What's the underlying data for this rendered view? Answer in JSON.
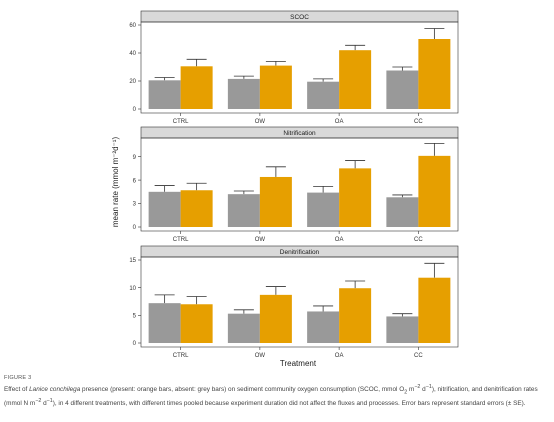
{
  "figure_label": "FIGURE 3",
  "caption_html": "Effect of <i>Lanice conchilega</i> presence (present: orange bars, absent: grey bars) on sediment community oxygen consumption (SCOC, mmol O<sub>2</sub> m<sup>−2</sup> d<sup>−1</sup>), nitrification, and denitrification rates (mmol N m<sup>−2</sup> d<sup>−1</sup>), in 4 different treatments, with different times pooled because experiment duration did not affect the fluxes and processes. Error bars represent standard errors (± SE).",
  "colors": {
    "present": "#E69F00",
    "absent": "#999999",
    "strip": "#D9D9D9"
  },
  "chart_data": {
    "type": "bar",
    "xlabel": "Treatment",
    "ylabel": "mean rate (mmol m⁻²d⁻¹)",
    "categories": [
      "CTRL",
      "OW",
      "OA",
      "CC"
    ],
    "grid": false,
    "panels": [
      {
        "title": "SCOC",
        "ylim": [
          0,
          60
        ],
        "yticks": [
          0,
          20,
          40,
          60
        ],
        "series": [
          {
            "values": [
              20.5,
              21.5,
              19.5,
              27.5
            ],
            "errors": [
              2.0,
              2.0,
              2.0,
              2.5
            ]
          },
          {
            "values": [
              30.5,
              31.0,
              42.0,
              50.0
            ],
            "errors": [
              5.0,
              3.0,
              3.5,
              7.5
            ]
          }
        ]
      },
      {
        "title": "Nitrification",
        "ylim": [
          0,
          11
        ],
        "yticks": [
          0,
          3,
          6,
          9
        ],
        "series": [
          {
            "values": [
              4.5,
              4.2,
              4.4,
              3.8
            ],
            "errors": [
              0.8,
              0.4,
              0.8,
              0.3
            ]
          },
          {
            "values": [
              4.7,
              6.4,
              7.5,
              9.1
            ],
            "errors": [
              0.9,
              1.3,
              1.0,
              1.6
            ]
          }
        ]
      },
      {
        "title": "Denitrification",
        "ylim": [
          0,
          15
        ],
        "yticks": [
          0,
          5,
          10,
          15
        ],
        "series": [
          {
            "values": [
              7.2,
              5.3,
              5.7,
              4.8
            ],
            "errors": [
              1.5,
              0.7,
              1.0,
              0.5
            ]
          },
          {
            "values": [
              7.0,
              8.7,
              9.9,
              11.8
            ],
            "errors": [
              1.4,
              1.5,
              1.3,
              2.6
            ]
          }
        ]
      }
    ]
  }
}
